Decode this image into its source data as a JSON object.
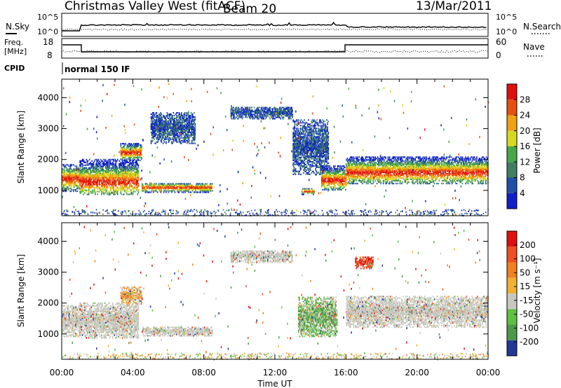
{
  "header": {
    "title": "Christmas Valley West (fitACF)",
    "beam": "Beam 20",
    "date": "13/Mar/2011"
  },
  "panels": {
    "nsky": {
      "label": "N.Sky",
      "ticks": [
        "10^5",
        "10^0"
      ],
      "right_label": "N.Search",
      "right_ticks": [
        "10^5",
        "10^0"
      ]
    },
    "freq": {
      "label_line1": "Freq.",
      "label_line2": "[MHz]",
      "ticks": [
        "18",
        "8"
      ],
      "right_label": "Nave",
      "right_ticks": [
        "60",
        "0"
      ]
    },
    "cpid": {
      "label": "CPID",
      "text": "normal 150 IF"
    }
  },
  "colors": {
    "power_scale": [
      "#1020c8",
      "#2050a8",
      "#408060",
      "#48a848",
      "#d8d820",
      "#f0a010",
      "#e85010",
      "#e01010"
    ],
    "velocity_scale": [
      "#e01010",
      "#f05020",
      "#f08020",
      "#f0b030",
      "#c8c8c0",
      "#60c040",
      "#4a9a48",
      "#203898"
    ],
    "grey_scatter": "#c6c6be"
  },
  "chart_data": [
    {
      "type": "heatmap",
      "name": "Power",
      "xlabel": "Time UT",
      "ylabel": "Slant Range [km]",
      "xlim": [
        0,
        24
      ],
      "ylim": [
        180,
        4600
      ],
      "xticks": [
        "00:00",
        "04:00",
        "08:00",
        "12:00",
        "16:00",
        "20:00",
        "00:00"
      ],
      "yticks": [
        "1000",
        "2000",
        "3000",
        "4000"
      ],
      "ytick_values": [
        1000,
        2000,
        3000,
        4000
      ],
      "colorbar": {
        "label": "Power [dB]",
        "ticks": [
          "4",
          "8",
          "12",
          "16",
          "20",
          "24",
          "28"
        ]
      },
      "regions": [
        {
          "t": [
            0,
            1
          ],
          "r": [
            950,
            1850
          ],
          "core": 1350
        },
        {
          "t": [
            1,
            4.3
          ],
          "r": [
            850,
            2000
          ],
          "core": 1250
        },
        {
          "t": [
            3.3,
            4.5
          ],
          "r": [
            1950,
            2500
          ],
          "core": 2200
        },
        {
          "t": [
            4.5,
            8.5
          ],
          "r": [
            920,
            1230
          ],
          "core": 1070
        },
        {
          "t": [
            5,
            7.5
          ],
          "r": [
            2500,
            3500
          ],
          "core": 0
        },
        {
          "t": [
            9.5,
            13
          ],
          "r": [
            3300,
            3700
          ],
          "core": 0
        },
        {
          "t": [
            13,
            15
          ],
          "r": [
            1500,
            3300
          ],
          "core": 0
        },
        {
          "t": [
            14.6,
            16
          ],
          "r": [
            1000,
            1800
          ],
          "core": 1300
        },
        {
          "t": [
            13.5,
            14.2
          ],
          "r": [
            850,
            1050
          ],
          "core": 950
        },
        {
          "t": [
            16,
            24
          ],
          "r": [
            1200,
            2100
          ],
          "core": 1550
        }
      ]
    },
    {
      "type": "heatmap",
      "name": "Velocity",
      "xlabel": "Time UT",
      "ylabel": "Slant Range [km]",
      "xlim": [
        0,
        24
      ],
      "ylim": [
        180,
        4600
      ],
      "xticks": [
        "00:00",
        "04:00",
        "08:00",
        "12:00",
        "16:00",
        "20:00",
        "00:00"
      ],
      "yticks": [
        "1000",
        "2000",
        "3000",
        "4000"
      ],
      "ytick_values": [
        1000,
        2000,
        3000,
        4000
      ],
      "colorbar": {
        "label": "Velocity [m s⁻¹]",
        "ticks": [
          "200",
          "100",
          "50",
          "15",
          "-15",
          "-50",
          "-100",
          "-200"
        ]
      },
      "regions": [
        {
          "t": [
            0,
            1
          ],
          "r": [
            900,
            1900
          ],
          "v": "grey"
        },
        {
          "t": [
            1,
            4.3
          ],
          "r": [
            850,
            2000
          ],
          "v": "grey"
        },
        {
          "t": [
            3.3,
            4.5
          ],
          "r": [
            1950,
            2500
          ],
          "v": "orange"
        },
        {
          "t": [
            4.5,
            8.5
          ],
          "r": [
            920,
            1230
          ],
          "v": "grey"
        },
        {
          "t": [
            13.3,
            15.5
          ],
          "r": [
            900,
            2200
          ],
          "v": "green"
        },
        {
          "t": [
            9.5,
            13
          ],
          "r": [
            3300,
            3700
          ],
          "v": "grey"
        },
        {
          "t": [
            16,
            24
          ],
          "r": [
            1200,
            2200
          ],
          "v": "grey"
        },
        {
          "t": [
            16.5,
            17.5
          ],
          "r": [
            3100,
            3500
          ],
          "v": "red"
        }
      ]
    }
  ]
}
